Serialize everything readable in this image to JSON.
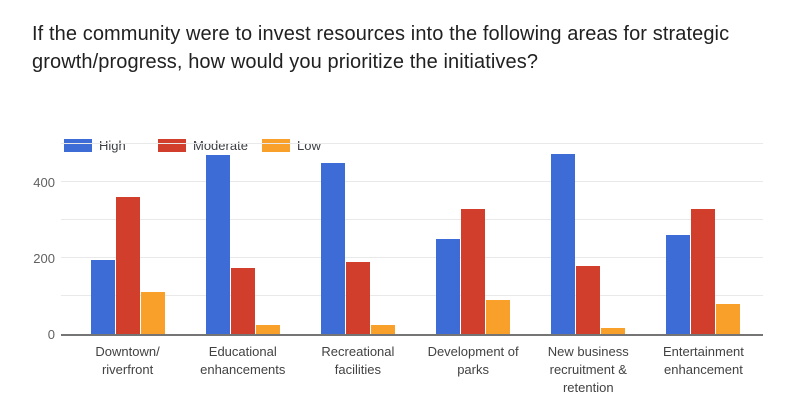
{
  "title": "If the community were to invest resources into the following areas for strategic growth/progress, how would you prioritize the initiatives?",
  "legend": {
    "position": "top-left",
    "items": [
      {
        "label": "High",
        "color": "#3e6cd7"
      },
      {
        "label": "Moderate",
        "color": "#d23e2c"
      },
      {
        "label": "Low",
        "color": "#f9a02b"
      }
    ]
  },
  "chart_data": {
    "type": "bar",
    "title": "If the community were to invest resources into the following areas for strategic growth/progress, how would you prioritize the initiatives?",
    "categories": [
      "Downtown/ riverfront",
      "Educational enhancements",
      "Recreational facilities",
      "Development of parks",
      "New business recruitment & retention",
      "Entertainment enhancement"
    ],
    "series": [
      {
        "name": "High",
        "color": "#3e6cd7",
        "values": [
          195,
          470,
          450,
          250,
          475,
          260
        ]
      },
      {
        "name": "Moderate",
        "color": "#d23e2c",
        "values": [
          360,
          175,
          190,
          330,
          180,
          330
        ]
      },
      {
        "name": "Low",
        "color": "#f9a02b",
        "values": [
          110,
          25,
          25,
          90,
          15,
          80
        ]
      }
    ],
    "xlabel": "",
    "ylabel": "",
    "ylim": [
      0,
      500
    ],
    "yticks_labeled": [
      0,
      200,
      400
    ],
    "gridline_step": 100,
    "grid": true,
    "legend_position": "top-left"
  },
  "colors": {
    "background": "#ffffff",
    "title_text": "#212121",
    "axis_line": "#757575",
    "gridline": "#e9e9e9",
    "ytick_text": "#616161",
    "xlabel_text": "#424242",
    "legend_text": "#3c4043"
  }
}
